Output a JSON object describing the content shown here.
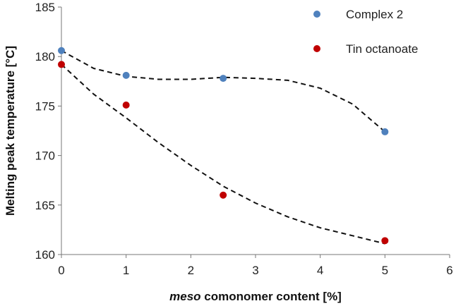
{
  "chart_data": {
    "type": "scatter",
    "xlabel_italic": "meso",
    "xlabel_rest": " comonomer content [%]",
    "ylabel": "Melting peak temperature [°C]",
    "xlim": [
      0,
      6
    ],
    "ylim": [
      160,
      185
    ],
    "x_ticks": [
      0,
      1,
      2,
      3,
      4,
      5,
      6
    ],
    "y_ticks": [
      160,
      165,
      170,
      175,
      180,
      185
    ],
    "grid": false,
    "legend_position": "top-right",
    "series": [
      {
        "name": "Complex 2",
        "color": "#4f81bd",
        "points": [
          {
            "x": 0,
            "y": 180.6
          },
          {
            "x": 1,
            "y": 178.1
          },
          {
            "x": 2.5,
            "y": 177.8
          },
          {
            "x": 5,
            "y": 172.4
          }
        ],
        "trend": [
          [
            0,
            180.6
          ],
          [
            0.5,
            178.8
          ],
          [
            1,
            178.0
          ],
          [
            1.5,
            177.7
          ],
          [
            2,
            177.7
          ],
          [
            2.5,
            177.9
          ],
          [
            3,
            177.8
          ],
          [
            3.5,
            177.6
          ],
          [
            4,
            176.8
          ],
          [
            4.5,
            175.2
          ],
          [
            5,
            172.4
          ]
        ]
      },
      {
        "name": "Tin octanoate",
        "color": "#c00000",
        "points": [
          {
            "x": 0,
            "y": 179.2
          },
          {
            "x": 1,
            "y": 175.1
          },
          {
            "x": 2.5,
            "y": 166.0
          },
          {
            "x": 5,
            "y": 161.4
          }
        ],
        "trend": [
          [
            0,
            179.2
          ],
          [
            0.5,
            176.2
          ],
          [
            1,
            173.8
          ],
          [
            1.5,
            171.3
          ],
          [
            2,
            169.0
          ],
          [
            2.5,
            166.9
          ],
          [
            3,
            165.2
          ],
          [
            3.5,
            163.8
          ],
          [
            4,
            162.7
          ],
          [
            4.5,
            161.9
          ],
          [
            5,
            161.1
          ]
        ]
      }
    ]
  }
}
